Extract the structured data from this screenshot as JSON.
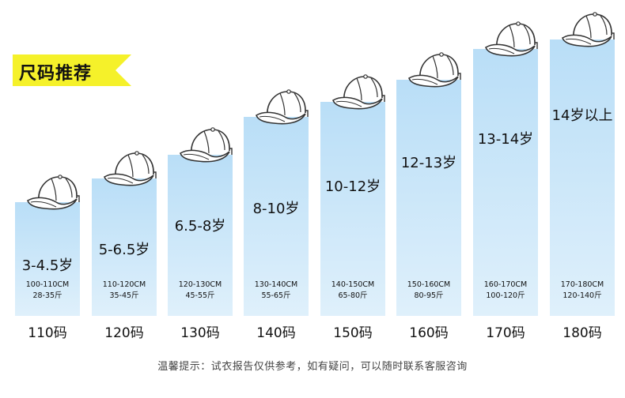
{
  "banner": {
    "text": "尺码推荐",
    "color": "#f5f12a"
  },
  "columns": [
    {
      "age": "3-4.5岁",
      "height": "100-110CM",
      "weight": "28-35斤",
      "size": "110码"
    },
    {
      "age": "5-6.5岁",
      "height": "110-120CM",
      "weight": "35-45斤",
      "size": "120码"
    },
    {
      "age": "6.5-8岁",
      "height": "120-130CM",
      "weight": "45-55斤",
      "size": "130码"
    },
    {
      "age": "8-10岁",
      "height": "130-140CM",
      "weight": "55-65斤",
      "size": "140码"
    },
    {
      "age": "10-12岁",
      "height": "140-150CM",
      "weight": "65-80斤",
      "size": "150码"
    },
    {
      "age": "12-13岁",
      "height": "150-160CM",
      "weight": "80-95斤",
      "size": "160码"
    },
    {
      "age": "13-14岁",
      "height": "160-170CM",
      "weight": "100-120斤",
      "size": "170码"
    },
    {
      "age": "14岁以上",
      "height": "170-180CM",
      "weight": "120-140斤",
      "size": "180码"
    }
  ],
  "hint": "温馨提示：试衣报告仅供参考，如有疑问，可以随时联系客服咨询",
  "colors": {
    "bar_light": "#dff0fb",
    "bar_dark": "#b9def7",
    "cap_stroke": "#333333"
  },
  "icons": {
    "cap": "baseball-cap-icon"
  }
}
